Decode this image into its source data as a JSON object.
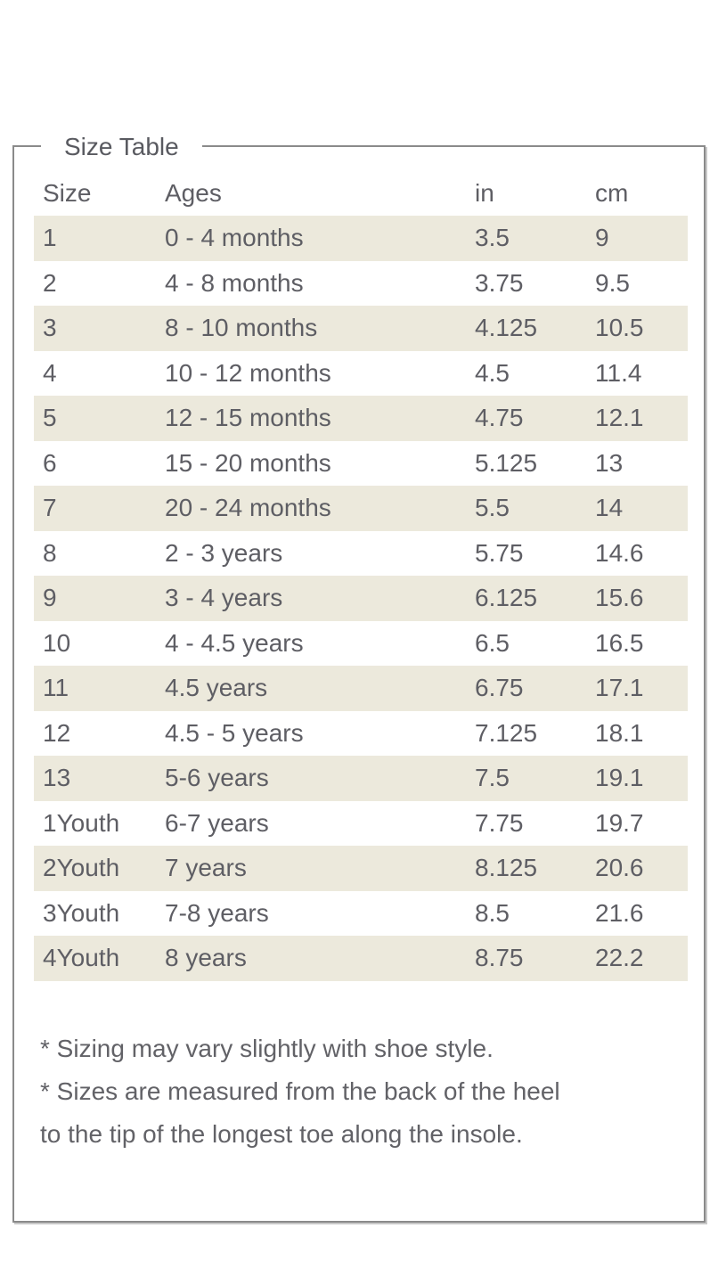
{
  "size_table": {
    "legend": "Size Table",
    "columns": [
      "Size",
      "Ages",
      "in",
      "cm"
    ],
    "rows": [
      {
        "size": "1",
        "ages": "0 - 4 months",
        "in": "3.5",
        "cm": "9"
      },
      {
        "size": "2",
        "ages": "4 - 8 months",
        "in": "3.75",
        "cm": "9.5"
      },
      {
        "size": "3",
        "ages": "8 - 10 months",
        "in": "4.125",
        "cm": "10.5"
      },
      {
        "size": "4",
        "ages": "10 - 12 months",
        "in": "4.5",
        "cm": "11.4"
      },
      {
        "size": "5",
        "ages": "12 - 15 months",
        "in": "4.75",
        "cm": "12.1"
      },
      {
        "size": "6",
        "ages": "15 - 20 months",
        "in": "5.125",
        "cm": "13"
      },
      {
        "size": "7",
        "ages": "20 - 24 months",
        "in": "5.5",
        "cm": "14"
      },
      {
        "size": "8",
        "ages": "2 - 3 years",
        "in": "5.75",
        "cm": "14.6"
      },
      {
        "size": "9",
        "ages": "3 - 4 years",
        "in": "6.125",
        "cm": "15.6"
      },
      {
        "size": "10",
        "ages": "4 - 4.5 years",
        "in": "6.5",
        "cm": "16.5"
      },
      {
        "size": "11",
        "ages": "4.5 years",
        "in": "6.75",
        "cm": "17.1"
      },
      {
        "size": "12",
        "ages": "4.5 - 5 years",
        "in": "7.125",
        "cm": "18.1"
      },
      {
        "size": "13",
        "ages": "5-6 years",
        "in": "7.5",
        "cm": "19.1"
      },
      {
        "size": "1Youth",
        "ages": "6-7 years",
        "in": "7.75",
        "cm": "19.7"
      },
      {
        "size": "2Youth",
        "ages": "7 years",
        "in": "8.125",
        "cm": "20.6"
      },
      {
        "size": "3Youth",
        "ages": "7-8 years",
        "in": "8.5",
        "cm": "21.6"
      },
      {
        "size": "4Youth",
        "ages": "8 years",
        "in": "8.75",
        "cm": "22.2"
      }
    ],
    "footnote_lines": [
      "* Sizing may vary slightly with shoe style.",
      "* Sizes are measured from the back of the heel",
      "to the tip of the longest toe along the insole."
    ],
    "colors": {
      "row_band": "#ECE9DC",
      "text": "#5E5E64",
      "border": "#8A8A8A"
    }
  }
}
